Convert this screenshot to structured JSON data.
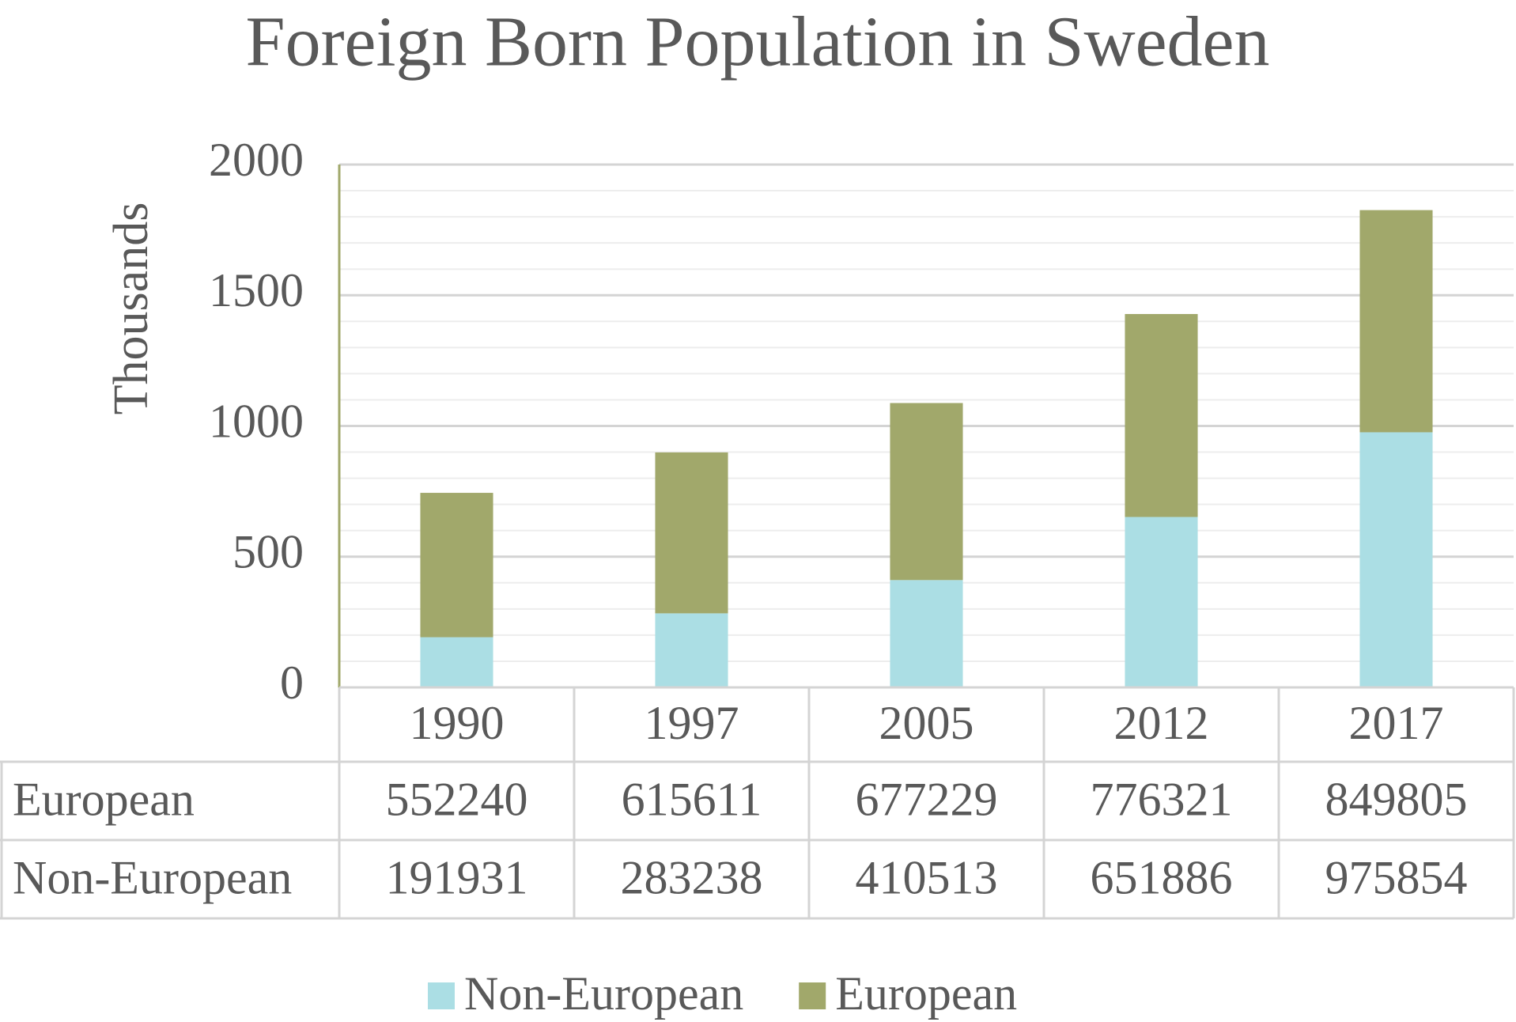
{
  "chart_data": {
    "type": "bar",
    "stacked": true,
    "title": "Foreign Born Population in Sweden",
    "y_label": "Thousands",
    "categories": [
      "1990",
      "1997",
      "2005",
      "2012",
      "2017"
    ],
    "series": [
      {
        "name": "Non-European",
        "color": "#abdee4",
        "values": [
          191.931,
          283.238,
          410.513,
          651.886,
          975.854
        ],
        "value_labels": [
          "191931",
          "283238",
          "410513",
          "651886",
          "975854"
        ]
      },
      {
        "name": "European",
        "color": "#a1a86b",
        "values": [
          552.24,
          615.611,
          677.229,
          776.321,
          849.805
        ],
        "value_labels": [
          "552240",
          "615611",
          "677229",
          "776321",
          "849805"
        ]
      }
    ],
    "ylim": [
      0,
      2000
    ],
    "yticks": [
      0,
      500,
      1000,
      1500,
      2000
    ],
    "minor_yticks": [
      100,
      200,
      300,
      400,
      600,
      700,
      800,
      900,
      1100,
      1200,
      1300,
      1400,
      1600,
      1700,
      1800,
      1900
    ],
    "grid": true,
    "data_table": true,
    "legend": "bottom"
  }
}
